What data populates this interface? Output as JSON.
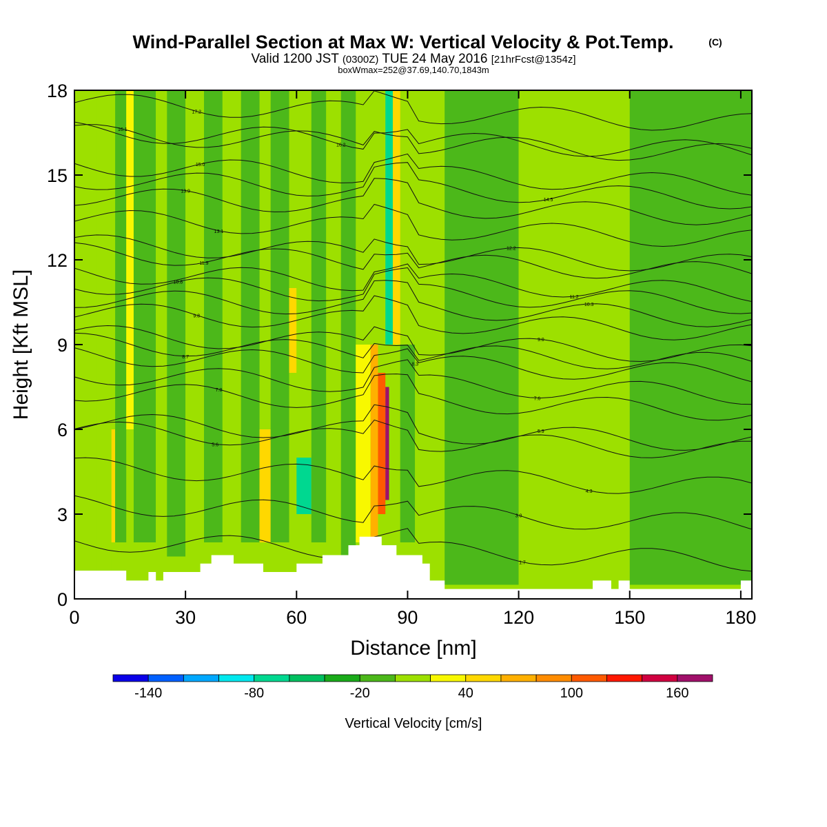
{
  "header": {
    "title": "Wind-Parallel Section at Max W: Vertical Velocity & Pot.Temp.",
    "title_mark": "(C)",
    "valid_prefix": "Valid 1200 JST",
    "valid_zulu": "(0300Z)",
    "valid_date": "TUE 24 May 2016",
    "valid_fcst": "[21hrFcst@1354z]",
    "boxmax": "boxWmax=252@37.69,140.70,1843m"
  },
  "chart_data": {
    "type": "heatmap",
    "xlabel": "Distance [nm]",
    "ylabel": "Height [Kft MSL]",
    "xlim": [
      0,
      183
    ],
    "ylim": [
      0,
      18
    ],
    "xticks": [
      0,
      30,
      60,
      90,
      120,
      150,
      180
    ],
    "yticks": [
      0,
      3,
      6,
      9,
      12,
      15,
      18
    ],
    "colorbar": {
      "label": "Vertical Velocity [cm/s]",
      "tick_labels": [
        "-140",
        "-80",
        "-20",
        "40",
        "100",
        "160"
      ],
      "tick_values": [
        -140,
        -80,
        -20,
        40,
        100,
        160
      ],
      "levels": [
        -140,
        -120,
        -100,
        -80,
        -60,
        -40,
        -20,
        0,
        20,
        40,
        60,
        80,
        100,
        120,
        140,
        160,
        180
      ],
      "colors": [
        "#0a00e8",
        "#0060ff",
        "#00a8ff",
        "#00e8ee",
        "#00d890",
        "#00c060",
        "#1aab1a",
        "#4cb81a",
        "#9de000",
        "#f8f800",
        "#ffd800",
        "#ffb000",
        "#ff8c00",
        "#ff5a00",
        "#ff1800",
        "#d00040",
        "#a0106a",
        "#6a10a0"
      ]
    },
    "cells": [
      {
        "x": [
          0,
          6
        ],
        "y": [
          1,
          18
        ],
        "w": 0
      },
      {
        "x": [
          6,
          10
        ],
        "y": [
          1,
          18
        ],
        "w": 10
      },
      {
        "x": [
          10,
          11
        ],
        "y": [
          2,
          6
        ],
        "w": 40
      },
      {
        "x": [
          11,
          14
        ],
        "y": [
          2,
          18
        ],
        "w": -10
      },
      {
        "x": [
          14,
          16
        ],
        "y": [
          6,
          18
        ],
        "w": 20
      },
      {
        "x": [
          16,
          22
        ],
        "y": [
          2,
          18
        ],
        "w": -5
      },
      {
        "x": [
          22,
          25
        ],
        "y": [
          1,
          18
        ],
        "w": 15
      },
      {
        "x": [
          25,
          30
        ],
        "y": [
          1.5,
          18
        ],
        "w": -10
      },
      {
        "x": [
          30,
          35
        ],
        "y": [
          1.5,
          18
        ],
        "w": 5
      },
      {
        "x": [
          35,
          40
        ],
        "y": [
          2,
          18
        ],
        "w": -10
      },
      {
        "x": [
          40,
          45
        ],
        "y": [
          2,
          18
        ],
        "w": 15
      },
      {
        "x": [
          45,
          50
        ],
        "y": [
          2,
          18
        ],
        "w": -5
      },
      {
        "x": [
          50,
          53
        ],
        "y": [
          2,
          6
        ],
        "w": 40
      },
      {
        "x": [
          53,
          58
        ],
        "y": [
          2,
          18
        ],
        "w": -15
      },
      {
        "x": [
          58,
          60
        ],
        "y": [
          8,
          11
        ],
        "w": 40
      },
      {
        "x": [
          60,
          64
        ],
        "y": [
          2,
          18
        ],
        "w": 10
      },
      {
        "x": [
          60,
          64
        ],
        "y": [
          3,
          5
        ],
        "w": -70
      },
      {
        "x": [
          64,
          68
        ],
        "y": [
          2,
          18
        ],
        "w": -10
      },
      {
        "x": [
          68,
          72
        ],
        "y": [
          2,
          18
        ],
        "w": 10
      },
      {
        "x": [
          72,
          76
        ],
        "y": [
          1.5,
          18
        ],
        "w": -5
      },
      {
        "x": [
          76,
          80
        ],
        "y": [
          2,
          9
        ],
        "w": 30
      },
      {
        "x": [
          80,
          82
        ],
        "y": [
          2,
          9
        ],
        "w": 60
      },
      {
        "x": [
          82,
          84
        ],
        "y": [
          3,
          8
        ],
        "w": 110
      },
      {
        "x": [
          84,
          85
        ],
        "y": [
          3.5,
          7.5
        ],
        "w": 170
      },
      {
        "x": [
          84,
          86
        ],
        "y": [
          9,
          18
        ],
        "w": -70
      },
      {
        "x": [
          86,
          88
        ],
        "y": [
          9,
          18
        ],
        "w": 50
      },
      {
        "x": [
          88,
          92
        ],
        "y": [
          2,
          9
        ],
        "w": -10
      },
      {
        "x": [
          92,
          100
        ],
        "y": [
          1,
          18
        ],
        "w": 10
      },
      {
        "x": [
          100,
          120
        ],
        "y": [
          0.5,
          18
        ],
        "w": -5
      },
      {
        "x": [
          120,
          150
        ],
        "y": [
          0.5,
          18
        ],
        "w": 10
      },
      {
        "x": [
          150,
          183
        ],
        "y": [
          0.5,
          18
        ],
        "w": -5
      }
    ],
    "terrain_kft": [
      [
        0,
        1.0
      ],
      [
        14,
        1.0
      ],
      [
        14,
        0.65
      ],
      [
        20,
        0.65
      ],
      [
        20,
        0.95
      ],
      [
        22,
        0.95
      ],
      [
        22,
        0.65
      ],
      [
        24,
        0.65
      ],
      [
        24,
        0.95
      ],
      [
        34,
        0.95
      ],
      [
        34,
        1.25
      ],
      [
        37,
        1.25
      ],
      [
        37,
        1.55
      ],
      [
        43,
        1.55
      ],
      [
        43,
        1.25
      ],
      [
        51,
        1.25
      ],
      [
        51,
        0.95
      ],
      [
        60,
        0.95
      ],
      [
        60,
        1.25
      ],
      [
        67,
        1.25
      ],
      [
        67,
        1.55
      ],
      [
        74,
        1.55
      ],
      [
        74,
        1.9
      ],
      [
        77,
        1.9
      ],
      [
        77,
        2.2
      ],
      [
        83,
        2.2
      ],
      [
        83,
        1.9
      ],
      [
        87,
        1.9
      ],
      [
        87,
        1.55
      ],
      [
        94,
        1.55
      ],
      [
        94,
        1.25
      ],
      [
        96,
        1.25
      ],
      [
        96,
        0.65
      ],
      [
        100,
        0.65
      ],
      [
        100,
        0.35
      ],
      [
        140,
        0.35
      ],
      [
        140,
        0.65
      ],
      [
        145,
        0.65
      ],
      [
        145,
        0.35
      ],
      [
        147,
        0.35
      ],
      [
        147,
        0.65
      ],
      [
        150,
        0.65
      ],
      [
        150,
        0.35
      ],
      [
        180,
        0.35
      ],
      [
        180,
        0.65
      ],
      [
        183,
        0.65
      ]
    ],
    "isentropes": [
      {
        "label": "17.2",
        "label_x": 33
      },
      {
        "label": "16.1",
        "label_x": 13
      },
      {
        "label": "16.2",
        "label_x": 72
      },
      {
        "label": "15.0",
        "label_x": 34
      },
      {
        "label": "14.5",
        "label_x": 128
      },
      {
        "label": "13.9",
        "label_x": 30
      },
      {
        "label": "13.1",
        "label_x": 39
      },
      {
        "label": "12.2",
        "label_x": 118
      },
      {
        "label": "11.9",
        "label_x": 35
      },
      {
        "label": "11.2",
        "label_x": 135
      },
      {
        "label": "10.8",
        "label_x": 28
      },
      {
        "label": "10.3",
        "label_x": 139
      },
      {
        "label": "9.8",
        "label_x": 33
      },
      {
        "label": "9.0",
        "label_x": 126
      },
      {
        "label": "8.7",
        "label_x": 30
      },
      {
        "label": "8.3",
        "label_x": 92
      },
      {
        "label": "7.6",
        "label_x": 125
      },
      {
        "label": "7.0",
        "label_x": 39
      },
      {
        "label": "5.9",
        "label_x": 126
      },
      {
        "label": "5.6",
        "label_x": 38
      },
      {
        "label": "4.3",
        "label_x": 139
      },
      {
        "label": "3.0",
        "label_x": 120
      },
      {
        "label": "1.7",
        "label_x": 121
      }
    ]
  }
}
